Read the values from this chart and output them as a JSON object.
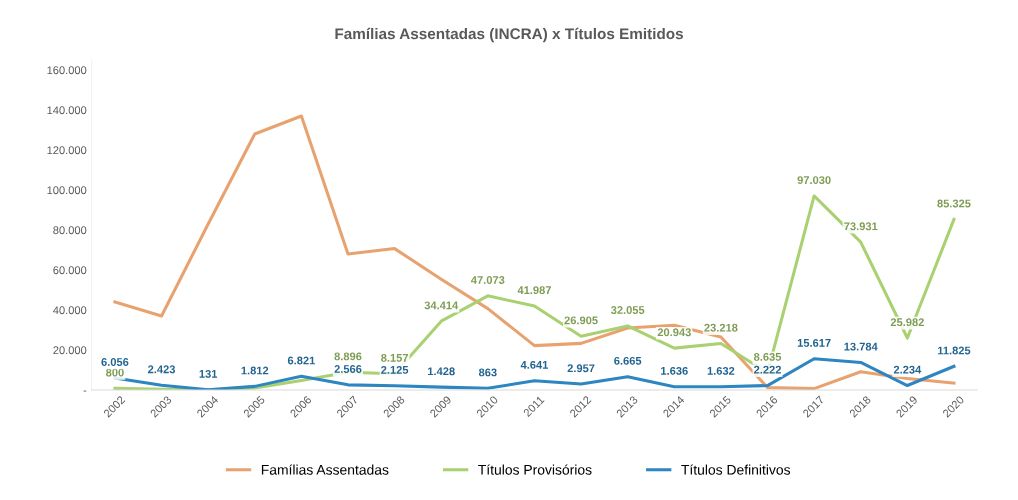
{
  "chart_data": {
    "type": "line",
    "title": "Famílias Assentadas (INCRA) x Títulos Emitidos",
    "categories": [
      "2002",
      "2003",
      "2004",
      "2005",
      "2006",
      "2007",
      "2008",
      "2009",
      "2010",
      "2011",
      "2012",
      "2013",
      "2014",
      "2015",
      "2016",
      "2017",
      "2018",
      "2019",
      "2020"
    ],
    "ylim": [
      0,
      165000
    ],
    "yticks": [
      {
        "value": 0,
        "label": "-"
      },
      {
        "value": 20000,
        "label": "20.000"
      },
      {
        "value": 40000,
        "label": "40.000"
      },
      {
        "value": 60000,
        "label": "60.000"
      },
      {
        "value": 80000,
        "label": "80.000"
      },
      {
        "value": 100000,
        "label": "100.000"
      },
      {
        "value": 120000,
        "label": "120.000"
      },
      {
        "value": 140000,
        "label": "140.000"
      },
      {
        "value": 160000,
        "label": "160.000"
      }
    ],
    "grid": false,
    "legend": "bottom",
    "marker": "none",
    "line_style": "solid",
    "series": [
      {
        "name": "Famílias Assentadas",
        "color": "#e8a26f",
        "values": [
          44000,
          37000,
          83000,
          128000,
          137000,
          68000,
          70700,
          55400,
          40700,
          22200,
          23300,
          31000,
          32400,
          26500,
          1200,
          700,
          9100,
          5700,
          3400
        ]
      },
      {
        "name": "Títulos Provisórios",
        "color": "#a9d171",
        "values": [
          800,
          300,
          100,
          1000,
          4700,
          8896,
          8157,
          34414,
          47073,
          41987,
          26905,
          32055,
          20943,
          23218,
          8635,
          97030,
          73931,
          25982,
          85325
        ],
        "value_labels": [
          "800",
          null,
          null,
          null,
          null,
          "8.896",
          "8.157",
          "34.414",
          "47.073",
          "41.987",
          "26.905",
          "32.055",
          "20.943",
          "23.218",
          "8.635",
          "97.030",
          "73.931",
          "25.982",
          "85.325"
        ]
      },
      {
        "name": "Títulos Definitivos",
        "color": "#2e86c1",
        "values": [
          6056,
          2423,
          131,
          1812,
          6821,
          2566,
          2125,
          1428,
          863,
          4641,
          2957,
          6665,
          1636,
          1632,
          2222,
          15617,
          13784,
          2234,
          11825
        ],
        "value_labels": [
          "6.056",
          "2.423",
          "131",
          "1.812",
          "6.821",
          "2.566",
          "2.125",
          "1.428",
          "863",
          "4.641",
          "2.957",
          "6.665",
          "1.636",
          "1.632",
          "2.222",
          "15.617",
          "13.784",
          "2.234",
          "11.825"
        ]
      }
    ]
  }
}
